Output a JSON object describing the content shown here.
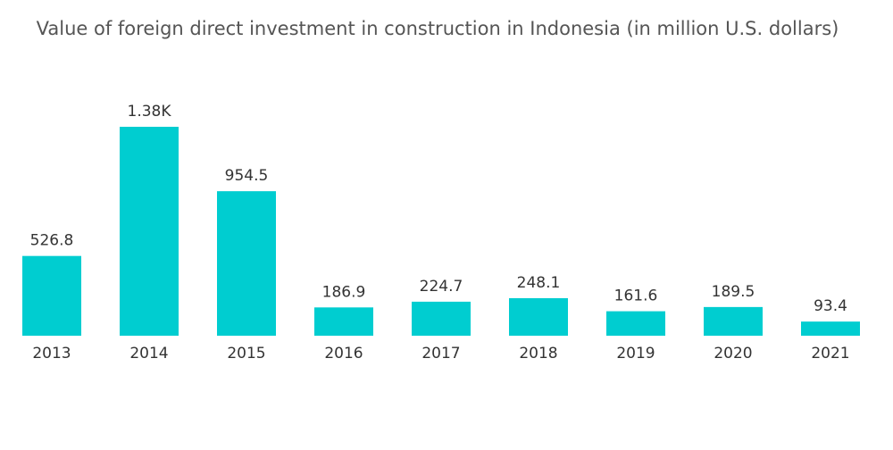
{
  "chart_data": {
    "type": "bar",
    "title": "Value of foreign direct investment in construction in Indonesia (in million U.S. dollars)",
    "categories": [
      "2013",
      "2014",
      "2015",
      "2016",
      "2017",
      "2018",
      "2019",
      "2020",
      "2021"
    ],
    "values": [
      526.8,
      1380,
      954.5,
      186.9,
      224.7,
      248.1,
      161.6,
      189.5,
      93.4
    ],
    "value_labels": [
      "526.8",
      "1.38K",
      "954.5",
      "186.9",
      "224.7",
      "248.1",
      "161.6",
      "189.5",
      "93.4"
    ],
    "color": "#00cdd0"
  }
}
